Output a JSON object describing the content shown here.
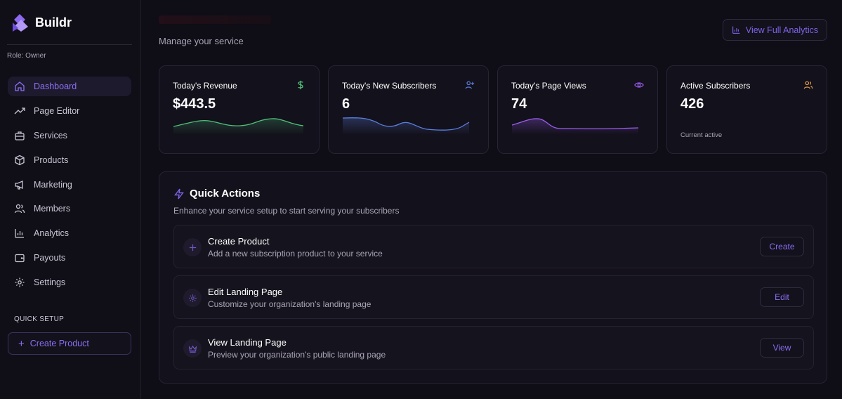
{
  "brand": {
    "name": "Buildr"
  },
  "sidebar": {
    "role": "Role: Owner",
    "items": [
      {
        "label": "Dashboard",
        "icon": "home-icon",
        "active": true
      },
      {
        "label": "Page Editor",
        "icon": "trending-up-icon"
      },
      {
        "label": "Services",
        "icon": "briefcase-icon"
      },
      {
        "label": "Products",
        "icon": "package-icon"
      },
      {
        "label": "Marketing",
        "icon": "megaphone-icon"
      },
      {
        "label": "Members",
        "icon": "users-icon"
      },
      {
        "label": "Analytics",
        "icon": "bar-chart-icon"
      },
      {
        "label": "Payouts",
        "icon": "wallet-icon"
      },
      {
        "label": "Settings",
        "icon": "gear-icon"
      }
    ],
    "quick_setup": {
      "title": "QUICK SETUP",
      "button": "Create Product"
    }
  },
  "header": {
    "subtitle": "Manage your service",
    "analytics_button": "View Full Analytics"
  },
  "stats": [
    {
      "title": "Today's Revenue",
      "value": "$443.5",
      "icon": "dollar-icon",
      "color": "#4ec27a"
    },
    {
      "title": "Today's New Subscribers",
      "value": "6",
      "icon": "user-plus-icon",
      "color": "#5b7fe0"
    },
    {
      "title": "Today's Page Views",
      "value": "74",
      "icon": "eye-icon",
      "color": "#9b5cf0"
    },
    {
      "title": "Active Subscribers",
      "value": "426",
      "icon": "users-icon",
      "color": "#e09a4a",
      "note": "Current active"
    }
  ],
  "quick_actions": {
    "title": "Quick Actions",
    "subtitle": "Enhance your service setup to start serving your subscribers",
    "items": [
      {
        "title": "Create Product",
        "desc": "Add a new subscription product to your service",
        "button": "Create",
        "icon": "plus-icon"
      },
      {
        "title": "Edit Landing Page",
        "desc": "Customize your organization's landing page",
        "button": "Edit",
        "icon": "gear-icon"
      },
      {
        "title": "View Landing Page",
        "desc": "Preview your organization's public landing page",
        "button": "View",
        "icon": "crown-icon"
      }
    ]
  }
}
